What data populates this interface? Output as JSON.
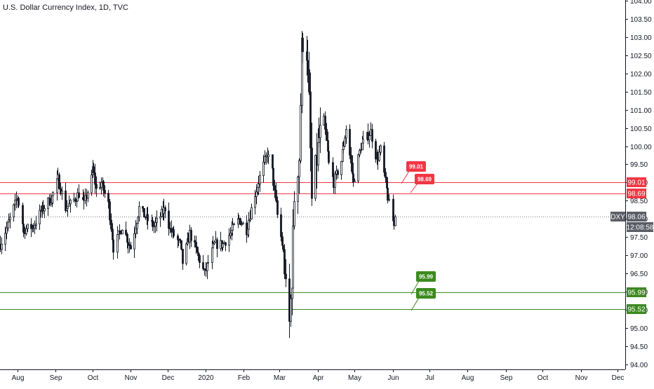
{
  "chart_data": {
    "type": "candlestick",
    "title": "U.S. Dollar Currency Index, 1D, TVC",
    "symbol": "DXY",
    "last_price": "98.06",
    "countdown": "12:08:58",
    "ylim": [
      93.86,
      104.02
    ],
    "y_ticks": [
      "94.00",
      "94.50",
      "95.00",
      "95.50",
      "96.00",
      "96.50",
      "97.00",
      "97.50",
      "98.00",
      "98.50",
      "99.00",
      "99.50",
      "100.00",
      "100.50",
      "101.00",
      "101.50",
      "102.00",
      "102.50",
      "103.00",
      "103.50",
      "104.00"
    ],
    "x_ticks": [
      "Aug",
      "Sep",
      "Oct",
      "Nov",
      "Dec",
      "2020",
      "Feb",
      "Mar",
      "Apr",
      "May",
      "Jun",
      "Jul",
      "Aug",
      "Sep",
      "Oct",
      "Nov",
      "Dec"
    ],
    "x_tick_dates": [
      "2019-08-01",
      "2019-09-01",
      "2019-10-01",
      "2019-11-01",
      "2019-12-01",
      "2020-01-01",
      "2020-02-01",
      "2020-03-01",
      "2020-04-01",
      "2020-05-01",
      "2020-06-01",
      "2020-07-01",
      "2020-08-01",
      "2020-09-01",
      "2020-10-01",
      "2020-11-01",
      "2020-12-01"
    ],
    "xlim": [
      "2019-07-18",
      "2020-12-07"
    ],
    "price_path": [
      [
        "2019-07-18",
        97.3
      ],
      [
        "2019-07-26",
        98.0
      ],
      [
        "2019-08-01",
        98.6
      ],
      [
        "2019-08-06",
        97.7
      ],
      [
        "2019-08-14",
        97.8
      ],
      [
        "2019-08-20",
        98.2
      ],
      [
        "2019-08-29",
        98.6
      ],
      [
        "2019-09-03",
        99.1
      ],
      [
        "2019-09-09",
        98.3
      ],
      [
        "2019-09-13",
        98.4
      ],
      [
        "2019-09-20",
        98.7
      ],
      [
        "2019-09-24",
        98.4
      ],
      [
        "2019-09-30",
        99.1
      ],
      [
        "2019-10-01",
        99.4
      ],
      [
        "2019-10-04",
        98.8
      ],
      [
        "2019-10-08",
        99.0
      ],
      [
        "2019-10-14",
        98.4
      ],
      [
        "2019-10-18",
        97.2
      ],
      [
        "2019-10-25",
        97.8
      ],
      [
        "2019-11-01",
        97.2
      ],
      [
        "2019-11-08",
        98.3
      ],
      [
        "2019-11-14",
        98.0
      ],
      [
        "2019-11-20",
        97.8
      ],
      [
        "2019-11-29",
        98.3
      ],
      [
        "2019-12-03",
        97.7
      ],
      [
        "2019-12-11",
        97.3
      ],
      [
        "2019-12-13",
        96.8
      ],
      [
        "2019-12-19",
        97.6
      ],
      [
        "2019-12-31",
        96.5
      ],
      [
        "2020-01-03",
        96.8
      ],
      [
        "2020-01-08",
        97.3
      ],
      [
        "2020-01-15",
        97.3
      ],
      [
        "2020-01-21",
        97.6
      ],
      [
        "2020-01-28",
        98.0
      ],
      [
        "2020-02-03",
        97.7
      ],
      [
        "2020-02-10",
        98.7
      ],
      [
        "2020-02-20",
        99.8
      ],
      [
        "2020-02-24",
        99.3
      ],
      [
        "2020-02-28",
        98.1
      ],
      [
        "2020-03-04",
        97.1
      ],
      [
        "2020-03-06",
        96.0
      ],
      [
        "2020-03-09",
        95.1
      ],
      [
        "2020-03-11",
        96.4
      ],
      [
        "2020-03-13",
        98.6
      ],
      [
        "2020-03-17",
        99.7
      ],
      [
        "2020-03-19",
        102.7
      ],
      [
        "2020-03-20",
        102.9
      ],
      [
        "2020-03-23",
        102.6
      ],
      [
        "2020-03-25",
        101.2
      ],
      [
        "2020-03-27",
        98.5
      ],
      [
        "2020-04-02",
        100.2
      ],
      [
        "2020-04-06",
        100.7
      ],
      [
        "2020-04-10",
        99.5
      ],
      [
        "2020-04-14",
        99.0
      ],
      [
        "2020-04-20",
        99.6
      ],
      [
        "2020-04-24",
        100.5
      ],
      [
        "2020-04-30",
        99.0
      ],
      [
        "2020-05-06",
        100.0
      ],
      [
        "2020-05-14",
        100.4
      ],
      [
        "2020-05-19",
        99.6
      ],
      [
        "2020-05-22",
        99.9
      ],
      [
        "2020-05-26",
        99.0
      ],
      [
        "2020-05-29",
        98.4
      ],
      [
        "2020-06-02",
        97.8
      ],
      [
        "2020-06-03",
        98.06
      ]
    ],
    "horizontal_lines": [
      {
        "value": 99.01,
        "label": "99.01",
        "color": "#f23645"
      },
      {
        "value": 98.69,
        "label": "98.69",
        "color": "#f23645"
      },
      {
        "value": 95.99,
        "label": "95.99",
        "color": "#3c8a1e"
      },
      {
        "value": 95.52,
        "label": "95.52",
        "color": "#3c8a1e"
      }
    ],
    "callouts": [
      {
        "label": "99.01",
        "color": "#f23645",
        "value": 99.01
      },
      {
        "label": "98.69",
        "color": "#f23645",
        "value": 98.69
      },
      {
        "label": "95.99",
        "color": "#3c8a1e",
        "value": 95.99
      },
      {
        "label": "95.52",
        "color": "#3c8a1e",
        "value": 95.52
      }
    ],
    "grid": false,
    "colors": {
      "candle": "#131722",
      "axis_text": "#131722",
      "axis_line": "#131722",
      "last_price_tag": "#5b5d66",
      "last_line": "#787b86"
    }
  }
}
